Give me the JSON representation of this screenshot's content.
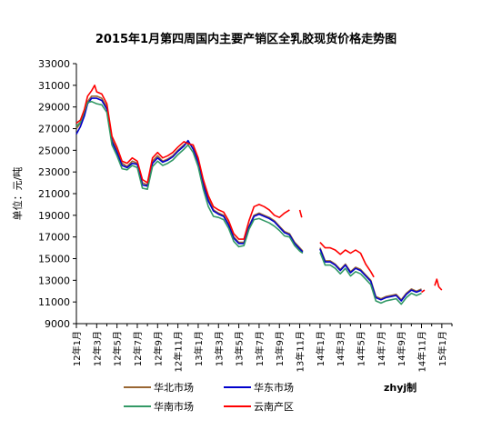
{
  "chart_data": {
    "type": "line",
    "title": "2015年1月第四周国内主要产销区全乳胶现货价格走势图",
    "ylabel": "单位：元/吨",
    "ylim": [
      9000,
      33000
    ],
    "yticks": [
      9000,
      11000,
      13000,
      15000,
      17000,
      19000,
      21000,
      23000,
      25000,
      27000,
      29000,
      31000,
      33000
    ],
    "xlim": [
      0,
      37
    ],
    "xticks": [
      {
        "x": 0,
        "label": "12年1月"
      },
      {
        "x": 2,
        "label": "12年3月"
      },
      {
        "x": 4,
        "label": "12年5月"
      },
      {
        "x": 6,
        "label": "12年7月"
      },
      {
        "x": 8,
        "label": "12年9月"
      },
      {
        "x": 10,
        "label": "12年11月"
      },
      {
        "x": 12,
        "label": "13年1月"
      },
      {
        "x": 14,
        "label": "13年3月"
      },
      {
        "x": 16,
        "label": "13年5月"
      },
      {
        "x": 18,
        "label": "13年7月"
      },
      {
        "x": 20,
        "label": "13年9月"
      },
      {
        "x": 22,
        "label": "13年11月"
      },
      {
        "x": 24,
        "label": "14年1月"
      },
      {
        "x": 26,
        "label": "14年3月"
      },
      {
        "x": 28,
        "label": "14年5月"
      },
      {
        "x": 30,
        "label": "14年7月"
      },
      {
        "x": 32,
        "label": "14年9月"
      },
      {
        "x": 34,
        "label": "14年11月"
      },
      {
        "x": 36,
        "label": "15年1月"
      }
    ],
    "grid": false,
    "legend_position": "bottom",
    "watermark": "zhyj制",
    "series": [
      {
        "name": "华北市场",
        "color": "#996633",
        "points": [
          [
            0,
            27000
          ],
          [
            0.4,
            27500
          ],
          [
            0.8,
            28500
          ],
          [
            1.1,
            29500
          ],
          [
            1.5,
            30000
          ],
          [
            2,
            30000
          ],
          [
            2.5,
            29800
          ],
          [
            3,
            29000
          ],
          [
            3.5,
            26000
          ],
          [
            4,
            25000
          ],
          [
            4.5,
            23800
          ],
          [
            5,
            23500
          ],
          [
            5.5,
            24000
          ],
          [
            6,
            23800
          ],
          [
            6.5,
            22000
          ],
          [
            7,
            21800
          ],
          [
            7.5,
            24000
          ],
          [
            8,
            24500
          ],
          [
            8.5,
            24000
          ],
          [
            9,
            24200
          ],
          [
            9.5,
            24500
          ],
          [
            10,
            25000
          ],
          [
            10.6,
            25500
          ],
          [
            11,
            25800
          ],
          [
            11.5,
            25200
          ],
          [
            12,
            24000
          ],
          [
            12.5,
            22000
          ],
          [
            13,
            20500
          ],
          [
            13.5,
            19500
          ],
          [
            14,
            19200
          ],
          [
            14.5,
            19000
          ],
          [
            15,
            18200
          ],
          [
            15.5,
            17000
          ],
          [
            16,
            16500
          ],
          [
            16.5,
            16500
          ],
          [
            17,
            18000
          ],
          [
            17.5,
            19000
          ],
          [
            18,
            19200
          ],
          [
            18.5,
            19000
          ],
          [
            19,
            18800
          ],
          [
            19.5,
            18500
          ],
          [
            20,
            18000
          ],
          [
            20.5,
            17500
          ],
          [
            21,
            17300
          ],
          [
            21.5,
            16500
          ],
          [
            22,
            16000
          ],
          [
            22.3,
            15700
          ]
        ],
        "gaps_after": [],
        "extra_segments": [
          [
            [
              24,
              16000
            ],
            [
              24.5,
              14800
            ],
            [
              25,
              14800
            ],
            [
              25.5,
              14500
            ],
            [
              26,
              14000
            ],
            [
              26.5,
              14500
            ],
            [
              27,
              13800
            ],
            [
              27.5,
              14200
            ],
            [
              28,
              14000
            ],
            [
              28.5,
              13500
            ],
            [
              29,
              13000
            ],
            [
              29.5,
              11500
            ],
            [
              30,
              11300
            ],
            [
              30.5,
              11500
            ],
            [
              31,
              11600
            ],
            [
              31.5,
              11700
            ],
            [
              32,
              11200
            ],
            [
              32.5,
              11800
            ],
            [
              33,
              12200
            ],
            [
              33.5,
              12000
            ],
            [
              34,
              12200
            ]
          ]
        ]
      },
      {
        "name": "华东市场",
        "color": "#0000cc",
        "points": [
          [
            0,
            26500
          ],
          [
            0.4,
            27200
          ],
          [
            0.8,
            28200
          ],
          [
            1.1,
            29300
          ],
          [
            1.5,
            29800
          ],
          [
            2,
            29800
          ],
          [
            2.5,
            29600
          ],
          [
            3,
            28800
          ],
          [
            3.5,
            25800
          ],
          [
            4,
            24800
          ],
          [
            4.5,
            23600
          ],
          [
            5,
            23400
          ],
          [
            5.5,
            23800
          ],
          [
            6,
            23700
          ],
          [
            6.5,
            21800
          ],
          [
            7,
            21700
          ],
          [
            7.5,
            23800
          ],
          [
            8,
            24300
          ],
          [
            8.5,
            23900
          ],
          [
            9,
            24100
          ],
          [
            9.5,
            24400
          ],
          [
            10,
            24900
          ],
          [
            10.6,
            25400
          ],
          [
            11,
            25900
          ],
          [
            11.5,
            25100
          ],
          [
            12,
            23900
          ],
          [
            12.5,
            21800
          ],
          [
            13,
            20300
          ],
          [
            13.5,
            19400
          ],
          [
            14,
            19100
          ],
          [
            14.5,
            18900
          ],
          [
            15,
            18100
          ],
          [
            15.5,
            16900
          ],
          [
            16,
            16400
          ],
          [
            16.5,
            16400
          ],
          [
            17,
            17900
          ],
          [
            17.5,
            18900
          ],
          [
            18,
            19100
          ],
          [
            18.5,
            18900
          ],
          [
            19,
            18700
          ],
          [
            19.5,
            18400
          ],
          [
            20,
            17900
          ],
          [
            20.5,
            17400
          ],
          [
            21,
            17200
          ],
          [
            21.5,
            16400
          ],
          [
            22,
            15900
          ],
          [
            22.3,
            15600
          ]
        ],
        "gaps_after": [],
        "extra_segments": [
          [
            [
              24,
              15900
            ],
            [
              24.5,
              14700
            ],
            [
              25,
              14700
            ],
            [
              25.5,
              14400
            ],
            [
              26,
              13900
            ],
            [
              26.5,
              14400
            ],
            [
              27,
              13700
            ],
            [
              27.5,
              14100
            ],
            [
              28,
              13900
            ],
            [
              28.5,
              13400
            ],
            [
              29,
              12900
            ],
            [
              29.5,
              11400
            ],
            [
              30,
              11200
            ],
            [
              30.5,
              11400
            ],
            [
              31,
              11500
            ],
            [
              31.5,
              11600
            ],
            [
              32,
              11100
            ],
            [
              32.5,
              11700
            ],
            [
              33,
              12100
            ],
            [
              33.5,
              11900
            ],
            [
              34,
              12100
            ]
          ]
        ]
      },
      {
        "name": "华南市场",
        "color": "#339966",
        "points": [
          [
            0,
            27200
          ],
          [
            0.4,
            27600
          ],
          [
            0.8,
            28600
          ],
          [
            1.1,
            29400
          ],
          [
            1.5,
            29500
          ],
          [
            2,
            29300
          ],
          [
            2.5,
            29200
          ],
          [
            3,
            28500
          ],
          [
            3.5,
            25500
          ],
          [
            4,
            24500
          ],
          [
            4.5,
            23300
          ],
          [
            5,
            23200
          ],
          [
            5.5,
            23600
          ],
          [
            6,
            23400
          ],
          [
            6.5,
            21500
          ],
          [
            7,
            21400
          ],
          [
            7.5,
            23500
          ],
          [
            8,
            24000
          ],
          [
            8.5,
            23600
          ],
          [
            9,
            23800
          ],
          [
            9.5,
            24100
          ],
          [
            10,
            24600
          ],
          [
            10.6,
            25100
          ],
          [
            11,
            25500
          ],
          [
            11.5,
            24800
          ],
          [
            12,
            23500
          ],
          [
            12.5,
            21400
          ],
          [
            13,
            19800
          ],
          [
            13.5,
            18900
          ],
          [
            14,
            18800
          ],
          [
            14.5,
            18600
          ],
          [
            15,
            17800
          ],
          [
            15.5,
            16600
          ],
          [
            16,
            16100
          ],
          [
            16.5,
            16200
          ],
          [
            17,
            17700
          ],
          [
            17.5,
            18600
          ],
          [
            18,
            18700
          ],
          [
            18.5,
            18500
          ],
          [
            19,
            18300
          ],
          [
            19.5,
            18000
          ],
          [
            20,
            17600
          ],
          [
            20.5,
            17100
          ],
          [
            21,
            17000
          ],
          [
            21.5,
            16200
          ],
          [
            22,
            15700
          ],
          [
            22.3,
            15500
          ]
        ],
        "gaps_after": [],
        "extra_segments": [
          [
            [
              24,
              15600
            ],
            [
              24.5,
              14400
            ],
            [
              25,
              14400
            ],
            [
              25.5,
              14100
            ],
            [
              26,
              13600
            ],
            [
              26.5,
              14100
            ],
            [
              27,
              13400
            ],
            [
              27.5,
              13800
            ],
            [
              28,
              13600
            ],
            [
              28.5,
              13100
            ],
            [
              29,
              12600
            ],
            [
              29.5,
              11100
            ],
            [
              30,
              10900
            ],
            [
              30.5,
              11100
            ],
            [
              31,
              11200
            ],
            [
              31.5,
              11300
            ],
            [
              32,
              10800
            ],
            [
              32.5,
              11400
            ],
            [
              33,
              11800
            ],
            [
              33.5,
              11600
            ],
            [
              34,
              11800
            ]
          ]
        ]
      },
      {
        "name": "云南产区",
        "color": "#ff0000",
        "points": [
          [
            0,
            27500
          ],
          [
            0.4,
            27800
          ],
          [
            0.8,
            28800
          ],
          [
            1.1,
            30000
          ],
          [
            1.5,
            30500
          ],
          [
            1.8,
            31000
          ],
          [
            2,
            30400
          ],
          [
            2.5,
            30200
          ],
          [
            3,
            29300
          ],
          [
            3.5,
            26300
          ],
          [
            4,
            25300
          ],
          [
            4.5,
            24000
          ],
          [
            5,
            23800
          ],
          [
            5.5,
            24300
          ],
          [
            6,
            24000
          ],
          [
            6.5,
            22300
          ],
          [
            7,
            22000
          ],
          [
            7.5,
            24300
          ],
          [
            8,
            24800
          ],
          [
            8.5,
            24300
          ],
          [
            9,
            24500
          ],
          [
            9.5,
            24800
          ],
          [
            10,
            25300
          ],
          [
            10.6,
            25800
          ],
          [
            11,
            25600
          ],
          [
            11.5,
            25500
          ],
          [
            12,
            24300
          ],
          [
            12.5,
            22300
          ],
          [
            13,
            20800
          ],
          [
            13.5,
            19800
          ],
          [
            14,
            19500
          ],
          [
            14.5,
            19300
          ],
          [
            15,
            18500
          ],
          [
            15.5,
            17300
          ],
          [
            16,
            16800
          ],
          [
            16.5,
            16800
          ],
          [
            17,
            18500
          ],
          [
            17.5,
            19800
          ],
          [
            18,
            20000
          ],
          [
            18.5,
            19800
          ],
          [
            19,
            19500
          ],
          [
            19.5,
            19000
          ],
          [
            20,
            18800
          ],
          [
            20.5,
            19200
          ],
          [
            21,
            19500
          ]
        ],
        "extra_segments": [
          [
            [
              22,
              19500
            ],
            [
              22.2,
              18800
            ]
          ],
          [
            [
              24,
              16500
            ],
            [
              24.5,
              16000
            ],
            [
              25,
              16000
            ],
            [
              25.5,
              15800
            ],
            [
              26,
              15400
            ],
            [
              26.5,
              15800
            ],
            [
              27,
              15500
            ],
            [
              27.5,
              15800
            ],
            [
              28,
              15500
            ],
            [
              28.5,
              14500
            ],
            [
              29,
              13800
            ],
            [
              29.3,
              13300
            ]
          ],
          [
            [
              34,
              11900
            ],
            [
              34.3,
              12100
            ]
          ],
          [
            [
              35.3,
              12500
            ],
            [
              35.5,
              13100
            ],
            [
              35.7,
              12400
            ],
            [
              36,
              12100
            ]
          ]
        ]
      }
    ]
  }
}
